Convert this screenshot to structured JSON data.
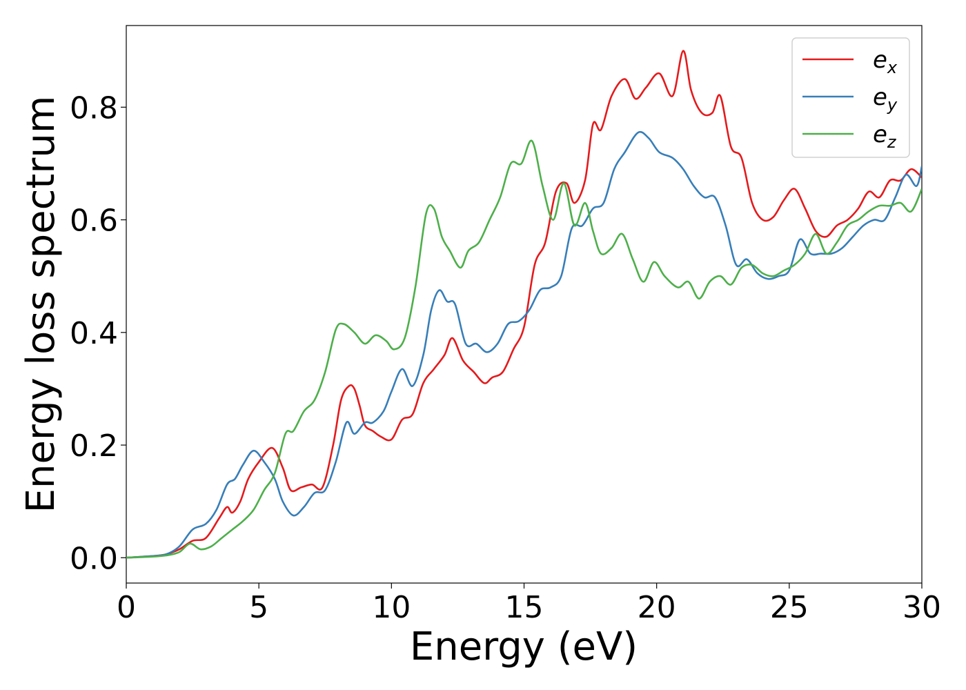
{
  "chart_data": {
    "type": "line",
    "title": "",
    "xlabel": "Energy (eV)",
    "ylabel": "Energy loss spectrum",
    "xlim": [
      0,
      30
    ],
    "ylim": [
      -0.045,
      0.945
    ],
    "xticks": [
      0,
      5,
      10,
      15,
      20,
      25,
      30
    ],
    "xtick_labels": [
      "0",
      "5",
      "10",
      "15",
      "20",
      "25",
      "30"
    ],
    "yticks": [
      0.0,
      0.2,
      0.4,
      0.6,
      0.8
    ],
    "ytick_labels": [
      "0.0",
      "0.2",
      "0.4",
      "0.6",
      "0.8"
    ],
    "grid": false,
    "legend_position": "top-right",
    "series": [
      {
        "name": "e",
        "subscript": "x",
        "color": "#e41a1c",
        "x": [
          0,
          1,
          1.5,
          2,
          2.5,
          3,
          3.5,
          3.8,
          4.0,
          4.3,
          4.6,
          5.0,
          5.5,
          5.9,
          6.2,
          6.6,
          7.0,
          7.4,
          7.8,
          8.1,
          8.4,
          8.6,
          8.8,
          9.0,
          9.3,
          9.6,
          10.0,
          10.4,
          10.8,
          11.2,
          11.6,
          12.0,
          12.3,
          12.7,
          13.1,
          13.5,
          13.8,
          14.2,
          14.6,
          15.0,
          15.4,
          15.8,
          16.2,
          16.6,
          16.9,
          17.3,
          17.6,
          17.9,
          18.3,
          18.8,
          19.2,
          19.6,
          20.1,
          20.6,
          21.0,
          21.3,
          21.7,
          22.1,
          22.4,
          22.8,
          23.2,
          23.6,
          24.0,
          24.4,
          24.8,
          25.2,
          25.6,
          26.0,
          26.4,
          26.8,
          27.2,
          27.6,
          28.0,
          28.4,
          28.8,
          29.2,
          29.6,
          30.0
        ],
        "values": [
          0.0,
          0.003,
          0.006,
          0.015,
          0.03,
          0.035,
          0.07,
          0.09,
          0.08,
          0.1,
          0.14,
          0.17,
          0.195,
          0.16,
          0.12,
          0.125,
          0.13,
          0.125,
          0.2,
          0.28,
          0.305,
          0.3,
          0.27,
          0.235,
          0.225,
          0.215,
          0.21,
          0.245,
          0.255,
          0.31,
          0.335,
          0.36,
          0.39,
          0.35,
          0.33,
          0.31,
          0.32,
          0.33,
          0.37,
          0.41,
          0.52,
          0.56,
          0.65,
          0.665,
          0.63,
          0.67,
          0.77,
          0.76,
          0.82,
          0.85,
          0.815,
          0.835,
          0.86,
          0.82,
          0.9,
          0.83,
          0.79,
          0.79,
          0.82,
          0.73,
          0.71,
          0.63,
          0.6,
          0.605,
          0.635,
          0.655,
          0.62,
          0.58,
          0.57,
          0.59,
          0.6,
          0.62,
          0.65,
          0.64,
          0.67,
          0.67,
          0.69,
          0.675
        ]
      },
      {
        "name": "e",
        "subscript": "y",
        "color": "#377eb8",
        "x": [
          0,
          1,
          1.5,
          2,
          2.5,
          3,
          3.4,
          3.8,
          4.1,
          4.4,
          4.8,
          5.2,
          5.6,
          5.9,
          6.3,
          6.7,
          7.1,
          7.5,
          7.9,
          8.3,
          8.6,
          9.0,
          9.3,
          9.7,
          10.0,
          10.4,
          10.8,
          11.2,
          11.5,
          11.8,
          12.1,
          12.4,
          12.8,
          13.2,
          13.6,
          14.0,
          14.4,
          14.8,
          15.2,
          15.6,
          16.0,
          16.4,
          16.8,
          17.2,
          17.6,
          18.0,
          18.4,
          18.8,
          19.3,
          19.7,
          20.1,
          20.6,
          21.0,
          21.4,
          21.8,
          22.2,
          22.6,
          23.0,
          23.4,
          23.8,
          24.2,
          24.6,
          25.0,
          25.4,
          25.8,
          26.2,
          26.6,
          27.0,
          27.4,
          27.8,
          28.2,
          28.6,
          29.0,
          29.4,
          29.8,
          30.0
        ],
        "values": [
          0.0,
          0.003,
          0.006,
          0.02,
          0.05,
          0.06,
          0.085,
          0.13,
          0.14,
          0.165,
          0.19,
          0.17,
          0.14,
          0.1,
          0.075,
          0.09,
          0.115,
          0.12,
          0.17,
          0.24,
          0.22,
          0.24,
          0.24,
          0.26,
          0.295,
          0.335,
          0.305,
          0.36,
          0.44,
          0.475,
          0.455,
          0.45,
          0.38,
          0.38,
          0.365,
          0.38,
          0.415,
          0.42,
          0.44,
          0.475,
          0.48,
          0.5,
          0.585,
          0.59,
          0.62,
          0.63,
          0.69,
          0.72,
          0.755,
          0.745,
          0.72,
          0.71,
          0.69,
          0.66,
          0.64,
          0.64,
          0.59,
          0.52,
          0.53,
          0.505,
          0.495,
          0.5,
          0.51,
          0.565,
          0.54,
          0.54,
          0.54,
          0.55,
          0.57,
          0.59,
          0.6,
          0.6,
          0.64,
          0.68,
          0.66,
          0.695
        ]
      },
      {
        "name": "e",
        "subscript": "z",
        "color": "#4daf4a",
        "x": [
          0,
          1,
          1.5,
          2,
          2.4,
          2.8,
          3.2,
          3.6,
          4.0,
          4.4,
          4.8,
          5.2,
          5.6,
          6.0,
          6.3,
          6.7,
          7.1,
          7.5,
          7.9,
          8.2,
          8.6,
          9.0,
          9.4,
          9.8,
          10.1,
          10.5,
          10.9,
          11.3,
          11.6,
          11.9,
          12.2,
          12.6,
          12.9,
          13.3,
          13.7,
          14.1,
          14.5,
          14.9,
          15.3,
          15.7,
          16.1,
          16.5,
          16.9,
          17.3,
          17.6,
          17.9,
          18.3,
          18.7,
          19.1,
          19.5,
          19.9,
          20.3,
          20.8,
          21.2,
          21.6,
          22.0,
          22.4,
          22.8,
          23.2,
          23.6,
          24.0,
          24.4,
          24.8,
          25.2,
          25.6,
          26.0,
          26.4,
          26.8,
          27.2,
          27.6,
          28.0,
          28.4,
          28.8,
          29.2,
          29.6,
          30.0
        ],
        "values": [
          0.0,
          0.002,
          0.004,
          0.01,
          0.025,
          0.015,
          0.02,
          0.035,
          0.05,
          0.065,
          0.085,
          0.12,
          0.15,
          0.22,
          0.225,
          0.26,
          0.28,
          0.33,
          0.405,
          0.415,
          0.4,
          0.38,
          0.395,
          0.385,
          0.37,
          0.39,
          0.48,
          0.61,
          0.62,
          0.57,
          0.545,
          0.515,
          0.545,
          0.56,
          0.6,
          0.64,
          0.7,
          0.7,
          0.74,
          0.66,
          0.6,
          0.665,
          0.59,
          0.63,
          0.58,
          0.54,
          0.55,
          0.575,
          0.53,
          0.49,
          0.525,
          0.5,
          0.48,
          0.49,
          0.46,
          0.49,
          0.5,
          0.485,
          0.515,
          0.52,
          0.505,
          0.5,
          0.51,
          0.52,
          0.54,
          0.575,
          0.54,
          0.56,
          0.59,
          0.6,
          0.615,
          0.625,
          0.625,
          0.63,
          0.615,
          0.655
        ]
      }
    ]
  }
}
